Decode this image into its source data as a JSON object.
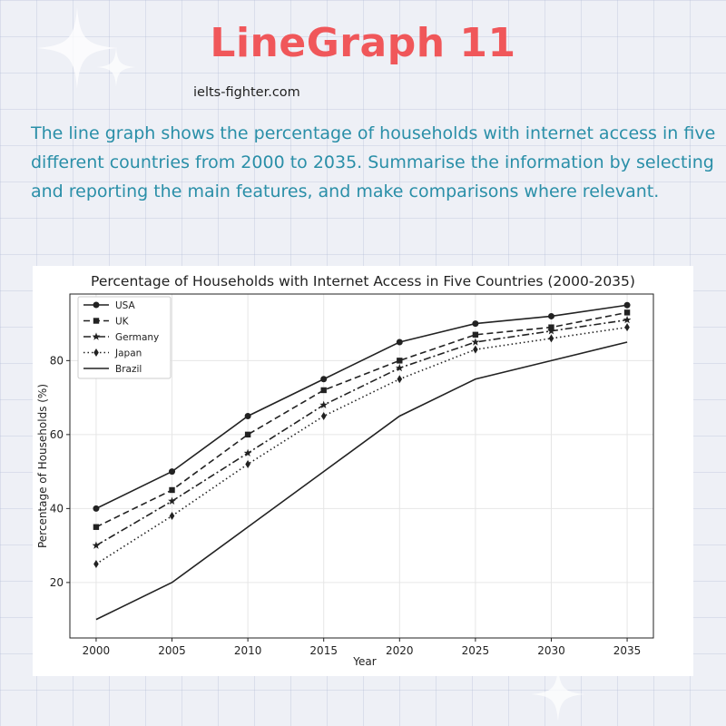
{
  "page": {
    "heading": "LineGraph 11",
    "site": "ielts-fighter.com",
    "prompt": "The line graph shows the percentage of households with internet access in five different countries from 2000 to 2035. Summarise the information by selecting and reporting the main features, and make comparisons where relevant.",
    "colors": {
      "heading": "#f0575a",
      "prompt": "#2a8fa8",
      "line": "#222222"
    }
  },
  "chart_data": {
    "type": "line",
    "title": "Percentage of Households with Internet Access in Five Countries (2000-2035)",
    "xlabel": "Year",
    "ylabel": "Percentage of Households (%)",
    "x": [
      2000,
      2005,
      2010,
      2015,
      2020,
      2025,
      2030,
      2035
    ],
    "xticks": [
      "2000",
      "2005",
      "2010",
      "2015",
      "2020",
      "2025",
      "2030",
      "2035"
    ],
    "yticks": [
      "20",
      "40",
      "60",
      "80"
    ],
    "ylim": [
      5,
      98
    ],
    "grid": true,
    "legend_position": "top-left",
    "series": [
      {
        "name": "USA",
        "values": [
          40,
          50,
          65,
          75,
          85,
          90,
          92,
          95
        ],
        "marker": "circle",
        "dash": "solid"
      },
      {
        "name": "UK",
        "values": [
          35,
          45,
          60,
          72,
          80,
          87,
          89,
          93
        ],
        "marker": "square",
        "dash": "dashed"
      },
      {
        "name": "Germany",
        "values": [
          30,
          42,
          55,
          68,
          78,
          85,
          88,
          91
        ],
        "marker": "star",
        "dash": "dashdot"
      },
      {
        "name": "Japan",
        "values": [
          25,
          38,
          52,
          65,
          75,
          83,
          86,
          89
        ],
        "marker": "diamond",
        "dash": "dotted"
      },
      {
        "name": "Brazil",
        "values": [
          10,
          20,
          35,
          50,
          65,
          75,
          80,
          85
        ],
        "marker": "none",
        "dash": "solid"
      }
    ]
  }
}
